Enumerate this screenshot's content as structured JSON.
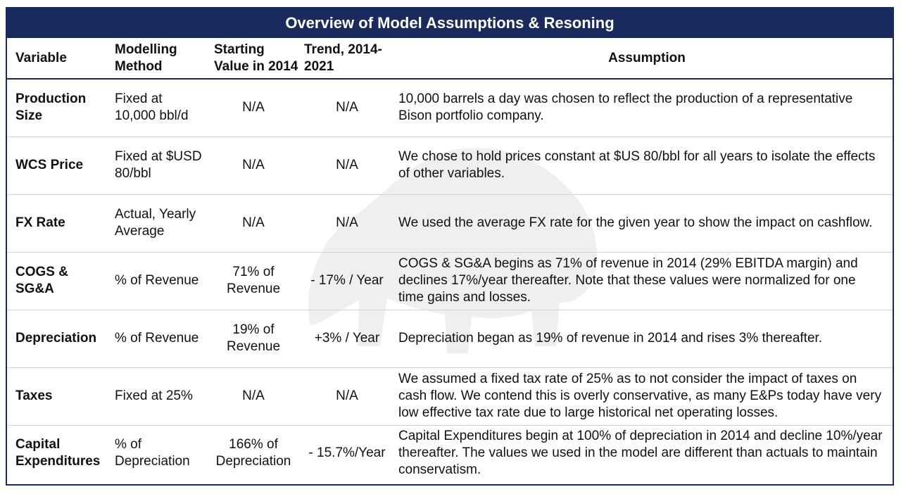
{
  "title": "Overview of Model Assumptions & Resoning",
  "columns": [
    "Variable",
    "Modelling Method",
    "Starting Value in 2014",
    "Trend, 2014-2021",
    "Assumption"
  ],
  "rows": [
    {
      "variable": "Production Size",
      "method": "Fixed at 10,000 bbl/d",
      "start": "N/A",
      "trend": "N/A",
      "assumption": "10,000 barrels a day was chosen to reflect the production of a representative Bison portfolio company."
    },
    {
      "variable": "WCS Price",
      "method": "Fixed at $USD 80/bbl",
      "start": "N/A",
      "trend": "N/A",
      "assumption": "We chose to hold prices constant at $US 80/bbl for all years to isolate the effects of other variables."
    },
    {
      "variable": "FX Rate",
      "method": "Actual, Yearly Average",
      "start": "N/A",
      "trend": "N/A",
      "assumption": "We used the average FX rate for the given year to show the impact on cashflow."
    },
    {
      "variable": "COGS & SG&A",
      "method": "% of Revenue",
      "start": "71% of Revenue",
      "trend": "- 17% / Year",
      "assumption": "COGS & SG&A begins as 71% of revenue in 2014 (29% EBITDA margin) and declines 17%/year thereafter.  Note that these values were normalized for one time gains and losses."
    },
    {
      "variable": "Depreciation",
      "method": "% of Revenue",
      "start": "19% of Revenue",
      "trend": "+3% / Year",
      "assumption": "Depreciation began as 19% of revenue in 2014 and rises 3% thereafter."
    },
    {
      "variable": "Taxes",
      "method": "Fixed at 25%",
      "start": "N/A",
      "trend": "N/A",
      "assumption": "We assumed a fixed tax rate of 25% as to not consider the impact of taxes on cash flow. We contend this is overly conservative, as many E&Ps today have very low effective tax rate due to large historical net operating losses."
    },
    {
      "variable": "Capital Expenditures",
      "method": "% of Depreciation",
      "start": "166% of Depreciation",
      "trend": "- 15.7%/Year",
      "assumption": "Capital Expenditures begin at 100% of depreciation in 2014 and decline 10%/year thereafter. The values we used in the model are different than actuals to maintain conservatism."
    }
  ]
}
